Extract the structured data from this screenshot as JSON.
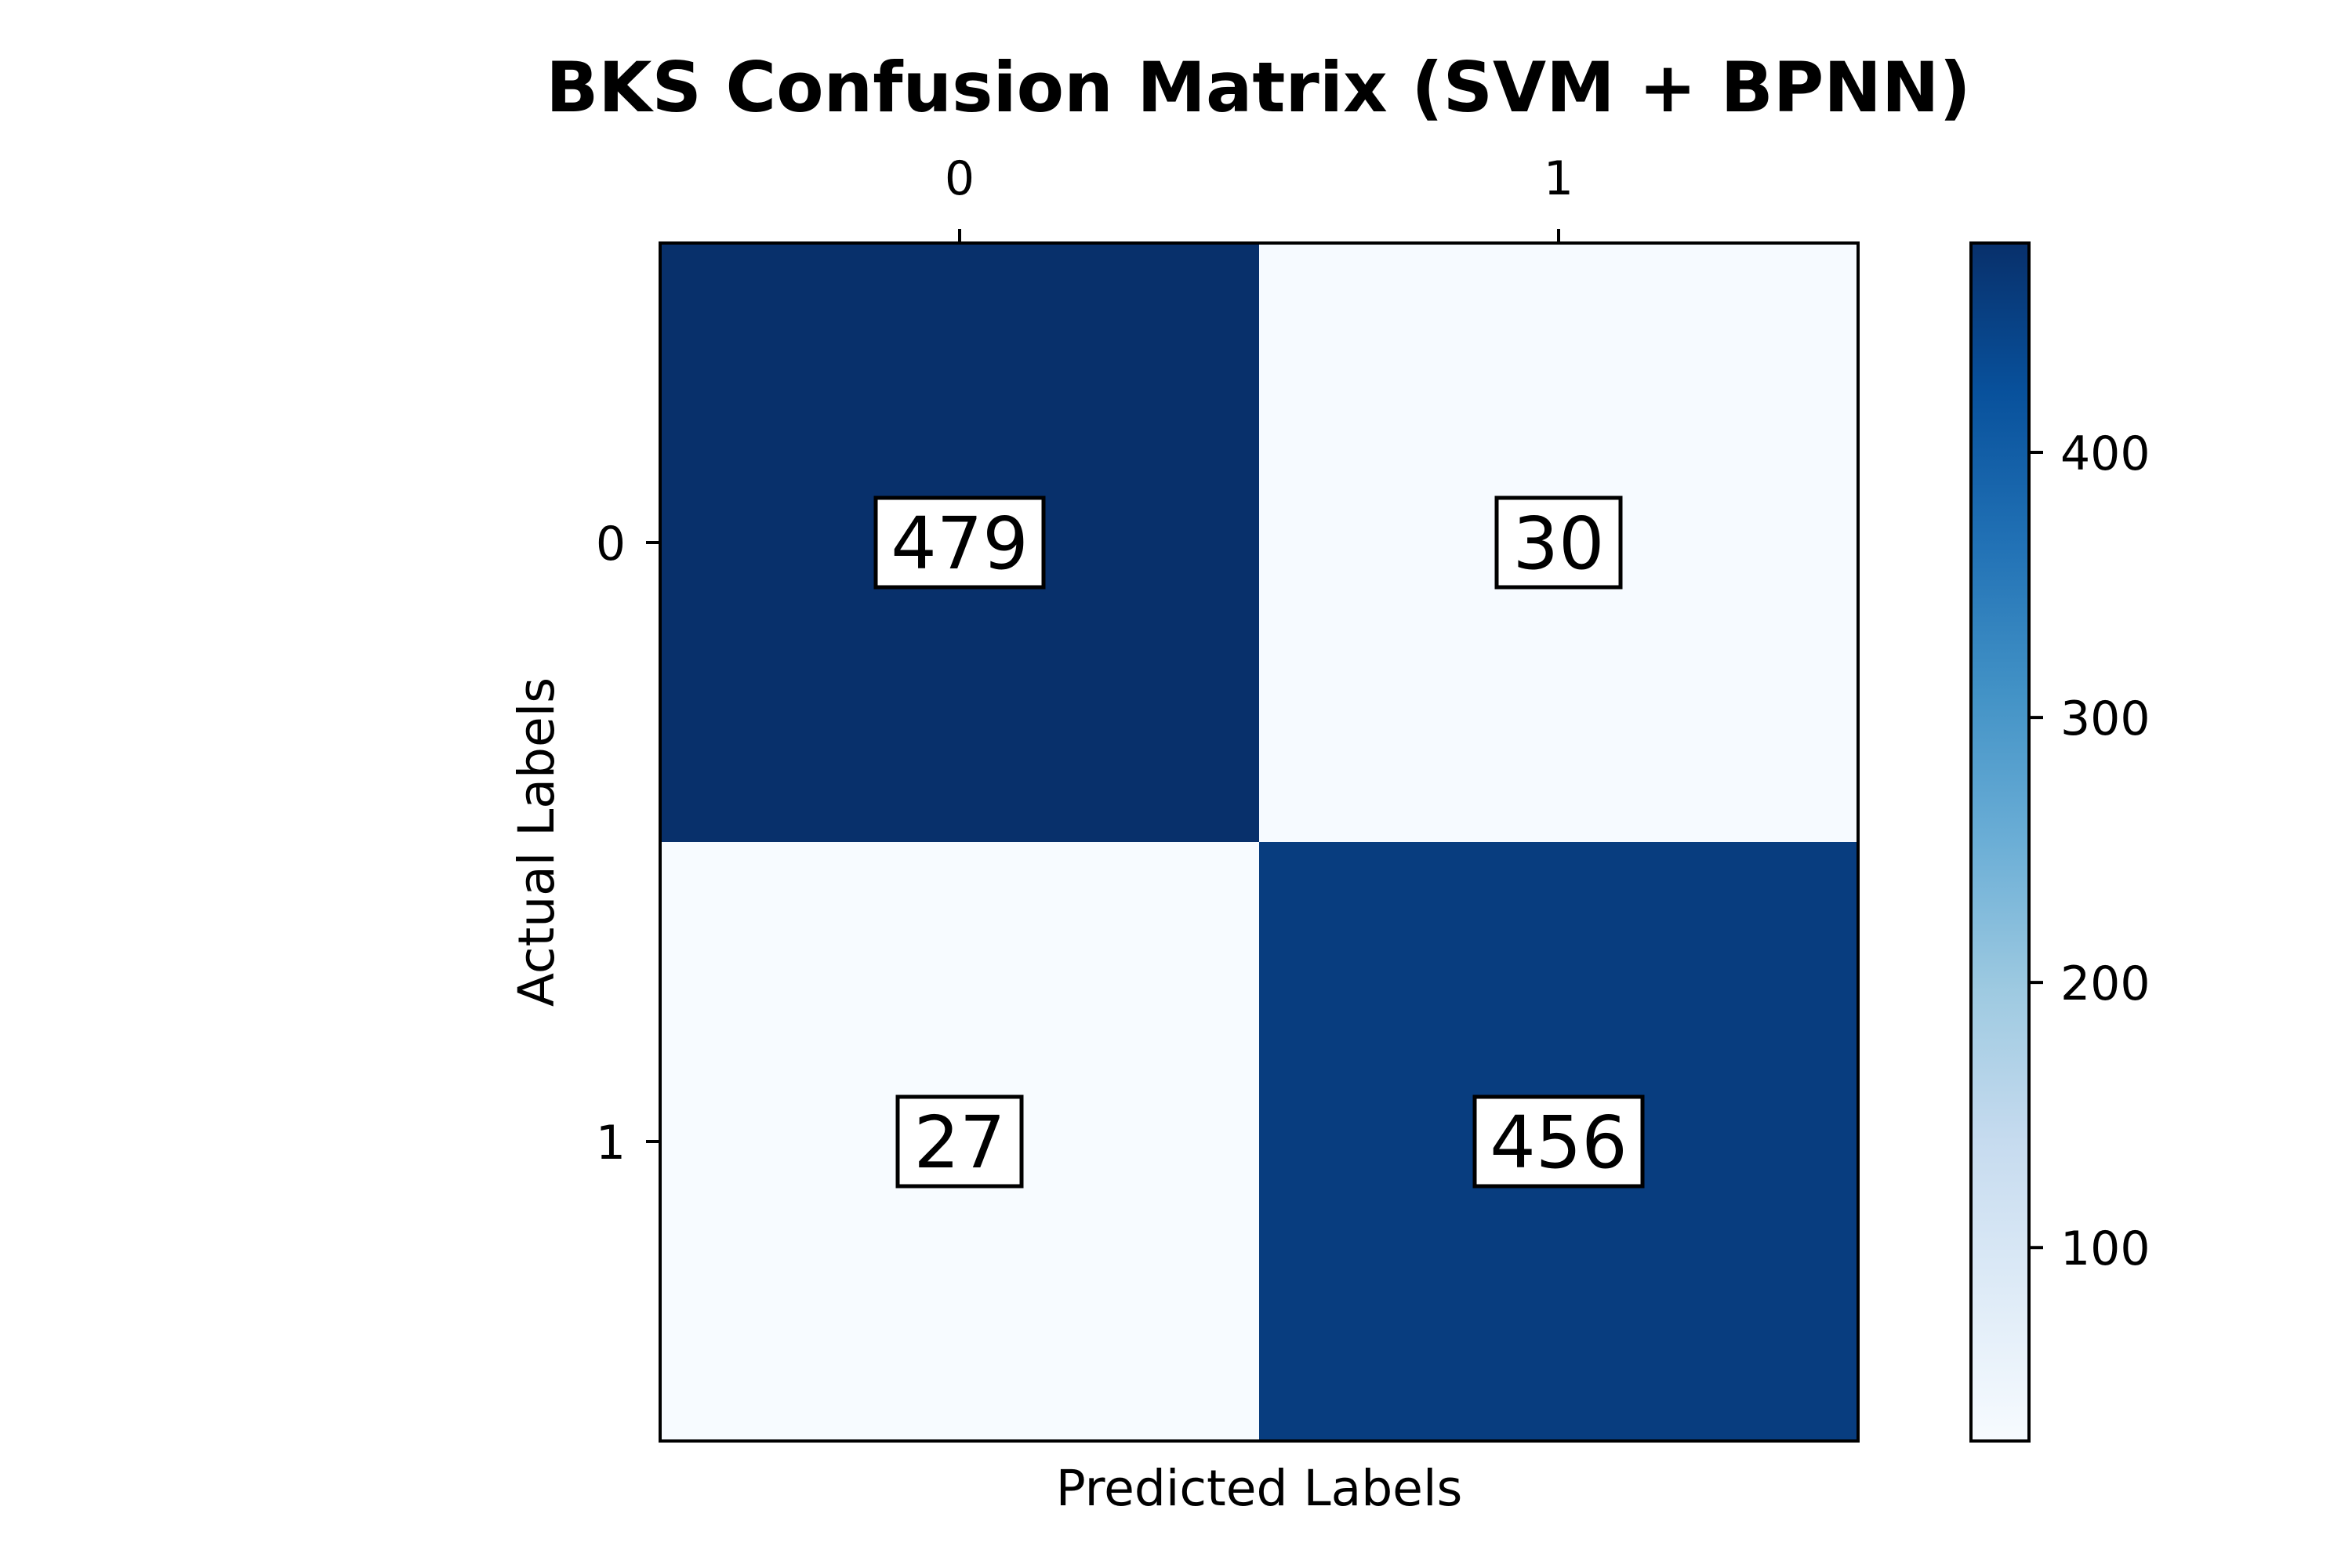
{
  "chart_data": {
    "type": "heatmap",
    "title": "BKS Confusion Matrix (SVM + BPNN)",
    "xlabel": "Predicted Labels",
    "ylabel": "Actual Labels",
    "x_categories": [
      "0",
      "1"
    ],
    "y_categories": [
      "0",
      "1"
    ],
    "values": [
      [
        479,
        30
      ],
      [
        27,
        456
      ]
    ],
    "colormap": "Blues",
    "color_range": [
      27,
      479
    ],
    "colorbar_ticks": [
      100,
      200,
      300,
      400
    ],
    "x_axis_position": "top",
    "grid": false
  }
}
